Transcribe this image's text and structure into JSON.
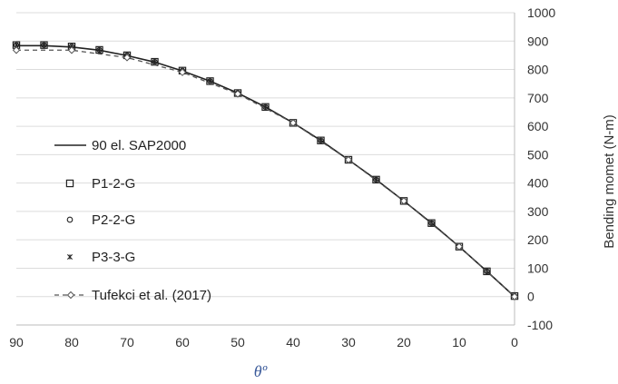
{
  "chart_data": {
    "type": "line",
    "title": "",
    "xlabel": "θº",
    "ylabel": "Bending momet (N-m)",
    "x_reversed": true,
    "xlim": [
      0,
      90
    ],
    "ylim": [
      -100,
      1000
    ],
    "x_ticks": [
      90,
      80,
      70,
      60,
      50,
      40,
      30,
      20,
      10,
      0
    ],
    "y_ticks": [
      -100,
      0,
      100,
      200,
      300,
      400,
      500,
      600,
      700,
      800,
      900,
      1000
    ],
    "grid": "horizontal",
    "legend_position": "left",
    "series": [
      {
        "name": "90 el. SAP2000",
        "style": "solid-line",
        "color": "#222222",
        "x": [
          90,
          85,
          80,
          75,
          70,
          65,
          60,
          55,
          50,
          45,
          40,
          35,
          30,
          25,
          20,
          15,
          10,
          5,
          0
        ],
        "values": [
          884,
          884,
          879,
          868,
          849,
          826,
          795,
          759,
          717,
          668,
          612,
          550,
          482,
          412,
          337,
          259,
          176,
          89,
          0
        ]
      },
      {
        "name": "P1-2-G",
        "style": "square-marker",
        "color": "#222222",
        "x": [
          90,
          85,
          80,
          75,
          70,
          65,
          60,
          55,
          50,
          45,
          40,
          35,
          30,
          25,
          20,
          15,
          10,
          5,
          0
        ],
        "values": [
          886,
          886,
          881,
          869,
          850,
          827,
          796,
          759,
          717,
          668,
          612,
          550,
          482,
          412,
          337,
          259,
          176,
          89,
          2
        ]
      },
      {
        "name": "P2-2-G",
        "style": "circle-marker",
        "color": "#222222",
        "x": [
          90,
          85,
          80,
          75,
          70,
          65,
          60,
          55,
          50,
          45,
          40,
          35,
          30,
          25,
          20,
          15,
          10,
          5,
          0
        ],
        "values": [
          886,
          886,
          881,
          869,
          850,
          827,
          796,
          759,
          717,
          668,
          612,
          550,
          482,
          412,
          337,
          259,
          176,
          89,
          2
        ]
      },
      {
        "name": "P3-3-G",
        "style": "star-marker",
        "color": "#222222",
        "x": [
          90,
          85,
          80,
          75,
          70,
          65,
          60,
          55,
          50,
          45,
          40,
          35,
          30,
          25,
          20,
          15,
          10,
          5,
          0
        ],
        "values": [
          886,
          886,
          881,
          869,
          850,
          827,
          796,
          759,
          717,
          668,
          612,
          550,
          482,
          412,
          337,
          259,
          176,
          89,
          2
        ]
      },
      {
        "name": "Tufekci et al. (2017)",
        "style": "dashed-diamond",
        "color": "#555555",
        "x": [
          90,
          80,
          70,
          60,
          50,
          40,
          30,
          20,
          10,
          0
        ],
        "values": [
          868,
          868,
          842,
          790,
          714,
          612,
          482,
          337,
          176,
          0
        ]
      }
    ]
  }
}
